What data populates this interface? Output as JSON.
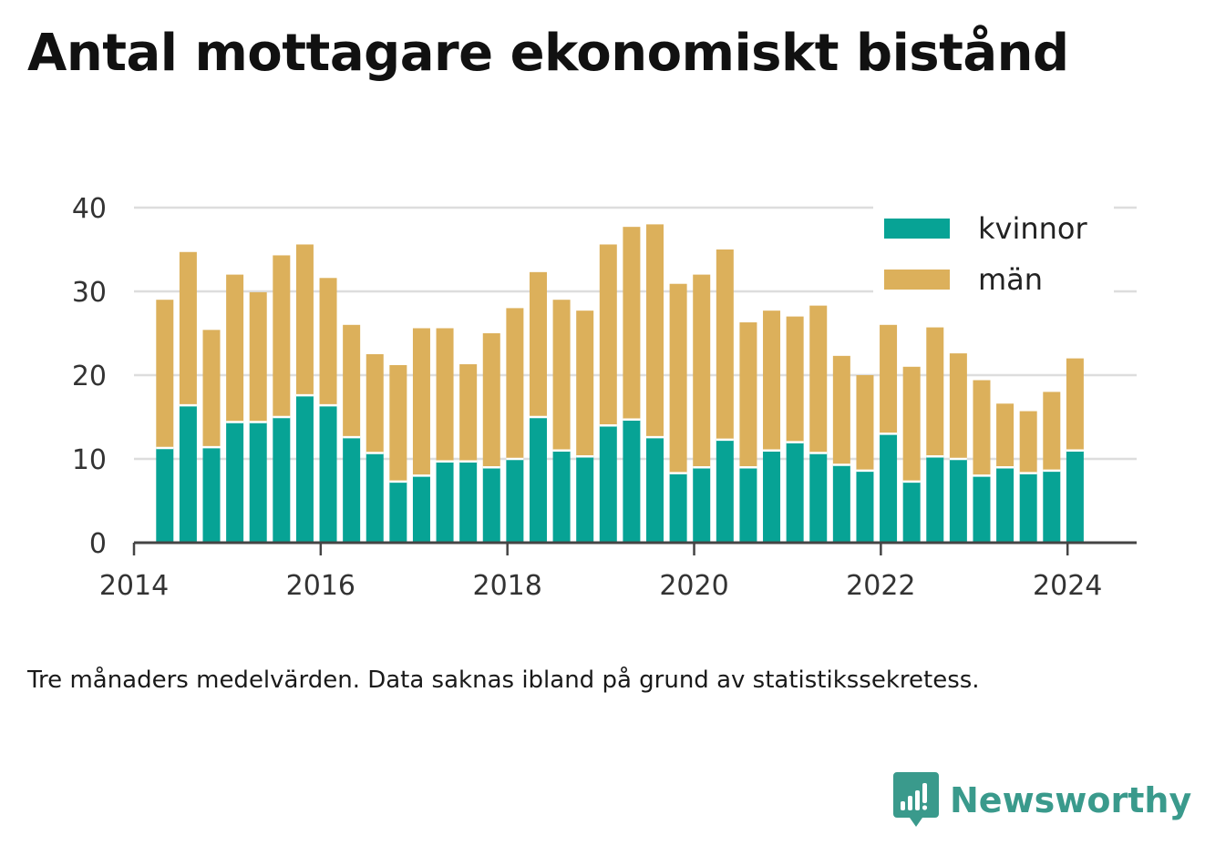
{
  "title": "Antal mottagare ekonomiskt bistånd",
  "caption": "Tre månaders medelvärden. Data saknas ibland på grund av statistikssekretess.",
  "brand": {
    "name": "Newsworthy",
    "icon": "newsworthy-logo-icon"
  },
  "colors": {
    "kvinnor": "#07a395",
    "man": "#dcb05b",
    "grid": "#dddddd",
    "axis": "#444444"
  },
  "chart_data": {
    "type": "bar",
    "stacked": true,
    "xlabel": "",
    "ylabel": "",
    "ylim": [
      0,
      40
    ],
    "xlim": [
      2014.0,
      2024.74
    ],
    "yticks": [
      0,
      10,
      20,
      30,
      40
    ],
    "xticks": [
      2014,
      2016,
      2018,
      2020,
      2022,
      2024
    ],
    "grid": true,
    "legend": "top-right",
    "x": [
      2014.33,
      2014.58,
      2014.83,
      2015.08,
      2015.33,
      2015.58,
      2015.83,
      2016.08,
      2016.33,
      2016.58,
      2016.83,
      2017.08,
      2017.33,
      2017.58,
      2017.83,
      2018.08,
      2018.33,
      2018.58,
      2018.83,
      2019.08,
      2019.33,
      2019.58,
      2019.83,
      2020.08,
      2020.33,
      2020.58,
      2020.83,
      2021.08,
      2021.33,
      2021.58,
      2021.83,
      2022.08,
      2022.33,
      2022.58,
      2022.83,
      2023.08,
      2023.33,
      2023.58,
      2023.83,
      2024.08
    ],
    "series": [
      {
        "name": "kvinnor",
        "values": [
          11.3,
          16.4,
          11.4,
          14.4,
          14.4,
          15.0,
          17.6,
          16.4,
          12.6,
          10.7,
          7.3,
          8.0,
          9.7,
          9.7,
          9.0,
          10.0,
          15.0,
          11.0,
          10.3,
          14.0,
          14.7,
          12.6,
          8.3,
          9.0,
          12.3,
          9.0,
          11.0,
          12.0,
          10.7,
          9.3,
          8.6,
          13.0,
          7.3,
          10.3,
          10.0,
          8.0,
          9.0,
          8.3,
          8.6,
          11.0
        ]
      },
      {
        "name": "män",
        "values": [
          17.7,
          18.3,
          14.0,
          17.6,
          15.5,
          19.3,
          18.0,
          15.2,
          13.4,
          11.8,
          13.9,
          17.6,
          15.9,
          11.6,
          16.0,
          18.0,
          17.3,
          18.0,
          17.4,
          21.6,
          23.0,
          25.4,
          22.6,
          23.0,
          22.7,
          17.3,
          16.7,
          15.0,
          17.6,
          13.0,
          11.4,
          13.0,
          13.7,
          15.4,
          12.6,
          11.4,
          7.6,
          7.4,
          9.4,
          11.0
        ]
      }
    ]
  }
}
